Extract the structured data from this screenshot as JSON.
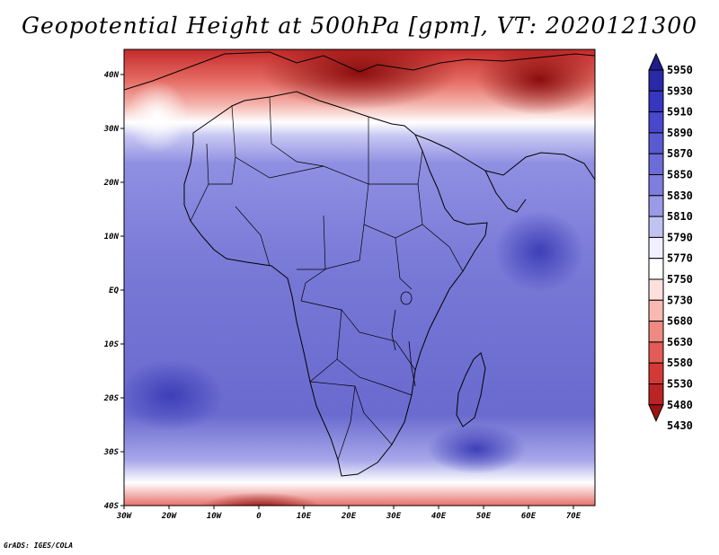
{
  "title": "Geopotential Height at 500hPa [gpm], VT: 2020121300",
  "credit": "GrADS: IGES/COLA",
  "map": {
    "lon_labels": [
      "30W",
      "20W",
      "10W",
      "0",
      "10E",
      "20E",
      "30E",
      "40E",
      "50E",
      "60E",
      "70E"
    ],
    "lat_labels": [
      "40N",
      "30N",
      "20N",
      "10N",
      "EQ",
      "10S",
      "20S",
      "30S",
      "40S"
    ],
    "lon_range": [
      -30,
      75
    ],
    "lat_range": [
      -40,
      44
    ]
  },
  "colorbar": {
    "levels": [
      "5950",
      "5930",
      "5910",
      "5890",
      "5870",
      "5850",
      "5830",
      "5810",
      "5790",
      "5770",
      "5750",
      "5730",
      "5680",
      "5630",
      "5580",
      "5530",
      "5480",
      "5430"
    ],
    "colors": [
      "#1e1e8c",
      "#2a2aa8",
      "#3636c0",
      "#4848cc",
      "#5a5ad2",
      "#6c6cd8",
      "#7e7edf",
      "#9a9ae6",
      "#c2c2f2",
      "#f0f0ff",
      "#ffffff",
      "#fde0dc",
      "#f7b9b2",
      "#ee8a82",
      "#e35c55",
      "#d33a36",
      "#bb2424",
      "#9e1212"
    ]
  },
  "colors": {
    "ocean": "#8585db",
    "land": "#7474d3",
    "coast": "#000000"
  }
}
